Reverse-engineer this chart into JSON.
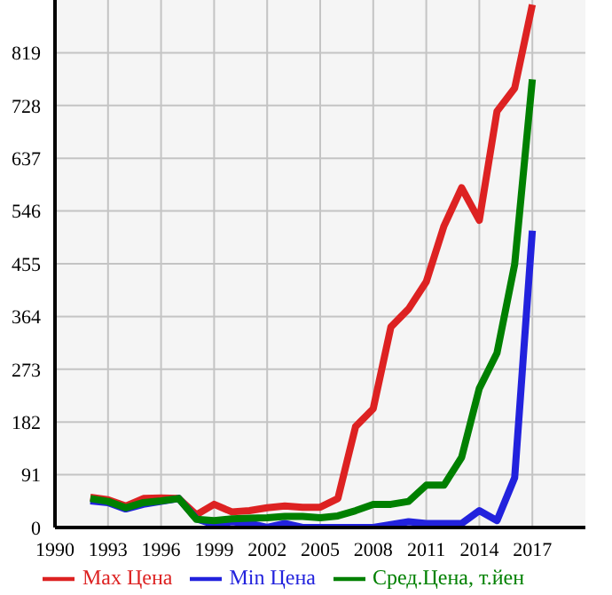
{
  "chart_data": {
    "type": "line",
    "x": [
      1992,
      1993,
      1994,
      1995,
      1996,
      1997,
      1998,
      1999,
      2000,
      2001,
      2002,
      2003,
      2004,
      2005,
      2006,
      2007,
      2008,
      2009,
      2010,
      2011,
      2012,
      2013,
      2014,
      2015,
      2016,
      2017
    ],
    "series": [
      {
        "name": "Max Цена",
        "color": "#dd2222",
        "values": [
          52,
          48,
          37,
          50,
          51,
          50,
          22,
          40,
          27,
          29,
          34,
          37,
          35,
          35,
          50,
          174,
          205,
          346,
          377,
          424,
          520,
          586,
          530,
          718,
          758,
          902
        ]
      },
      {
        "name": "Min Цена",
        "color": "#2222dd",
        "values": [
          46,
          43,
          32,
          40,
          45,
          50,
          15,
          5,
          10,
          7,
          0,
          7,
          0,
          0,
          0,
          0,
          0,
          5,
          10,
          7,
          7,
          7,
          29,
          12,
          86,
          512
        ]
      },
      {
        "name": "Сред.Цена, т.йен",
        "color": "#008000",
        "values": [
          50,
          45,
          34,
          43,
          46,
          50,
          14,
          12,
          15,
          16,
          17,
          19,
          19,
          17,
          20,
          29,
          40,
          40,
          45,
          73,
          73,
          121,
          240,
          301,
          454,
          773
        ]
      }
    ],
    "xlim": [
      1990,
      2020
    ],
    "xticks": [
      1990,
      1993,
      1996,
      1999,
      2002,
      2005,
      2008,
      2011,
      2014,
      2017
    ],
    "ylim": [
      0,
      910
    ],
    "yticks": [
      0,
      91,
      182,
      273,
      364,
      455,
      546,
      637,
      728,
      819
    ],
    "grid": true,
    "legend": "bottom",
    "marker": "none",
    "line_style": "solid"
  }
}
